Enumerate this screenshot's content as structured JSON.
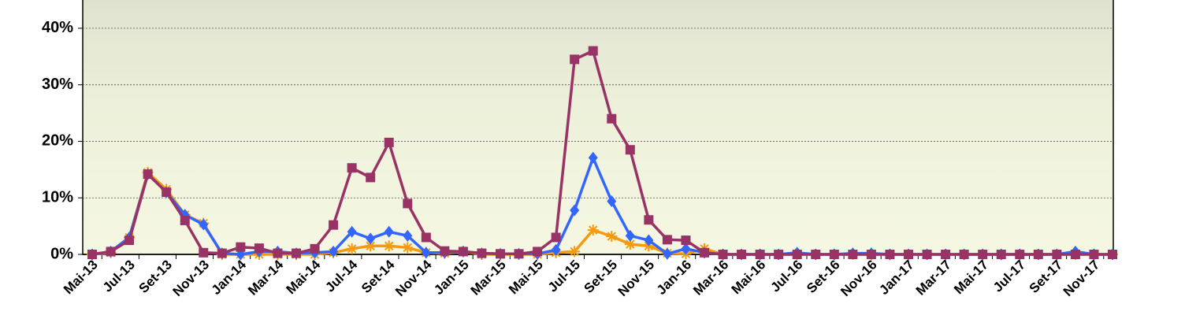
{
  "chart_data": {
    "type": "line",
    "categories": [
      "Mai-13",
      null,
      "Jul-13",
      null,
      "Set-13",
      null,
      "Nov-13",
      null,
      "Jan-14",
      null,
      "Mar-14",
      null,
      "Mai-14",
      null,
      "Jul-14",
      null,
      "Set-14",
      null,
      "Nov-14",
      null,
      "Jan-15",
      null,
      "Mar-15",
      null,
      "Mai-15",
      null,
      "Jul-15",
      null,
      "Set-15",
      null,
      "Nov-15",
      null,
      "Jan-16",
      null,
      "Mar-16",
      null,
      "Mai-16",
      null,
      "Jul-16",
      null,
      "Set-16",
      null,
      "Nov-16",
      null,
      "Jan-17",
      null,
      "Mar-17",
      null,
      "Mai-17",
      null,
      "Jul-17",
      null,
      "Set-17",
      null,
      "Nov-17",
      null
    ],
    "series": [
      {
        "color": "#f59a0c",
        "marker": "star",
        "values": [
          0,
          0.3,
          3,
          14.5,
          11.5,
          7,
          5.5,
          0,
          0,
          0,
          0,
          0,
          0,
          0.3,
          1,
          1.5,
          1.5,
          1.2,
          0.3,
          0.2,
          0.5,
          0,
          0,
          0,
          0,
          0.3,
          0.5,
          4.3,
          3.2,
          1.8,
          1.5,
          0.2,
          0.1,
          1.0,
          0,
          0,
          0,
          0,
          0,
          0,
          0,
          0,
          0,
          0,
          0,
          0,
          0,
          0,
          0,
          0,
          0,
          0,
          0,
          0,
          0,
          0
        ]
      },
      {
        "color": "#3366ff",
        "marker": "diamond",
        "values": [
          0,
          0.5,
          3,
          14.2,
          11,
          7,
          5.3,
          0.2,
          0,
          0.5,
          0.5,
          0.2,
          0.3,
          0.5,
          4.0,
          2.8,
          4.0,
          3.3,
          0.3,
          0.3,
          0.5,
          0.2,
          0.1,
          0.1,
          0.1,
          0.8,
          7.8,
          17.1,
          9.4,
          3.3,
          2.5,
          0.1,
          1.0,
          0.3,
          0,
          0,
          0,
          0,
          0.3,
          0,
          0,
          0.2,
          0.2,
          0,
          0,
          0,
          0,
          0,
          0,
          0,
          0,
          0,
          0,
          0.5,
          0,
          0
        ]
      },
      {
        "color": "#993366",
        "marker": "square",
        "values": [
          0,
          0.5,
          2.5,
          14.2,
          11,
          6,
          0.3,
          0.2,
          1.3,
          1.1,
          0.2,
          0.2,
          1.0,
          5.2,
          15.3,
          13.6,
          19.8,
          9.0,
          3.0,
          0.6,
          0.5,
          0.2,
          0.1,
          0.1,
          0.5,
          3.0,
          34.5,
          36,
          24,
          18.5,
          6.1,
          2.6,
          2.5,
          0.3,
          0,
          0,
          0,
          0,
          0,
          0,
          0,
          0,
          0,
          0,
          0,
          0,
          0,
          0,
          0,
          0,
          0,
          0,
          0,
          0,
          0,
          0
        ]
      }
    ],
    "ylim": [
      0,
      45
    ],
    "yticks": [
      {
        "value": 0,
        "label": "0%"
      },
      {
        "value": 10,
        "label": "10%"
      },
      {
        "value": 20,
        "label": "20%"
      },
      {
        "value": 30,
        "label": "30%"
      },
      {
        "value": 40,
        "label": "40%"
      }
    ],
    "grid": true
  }
}
